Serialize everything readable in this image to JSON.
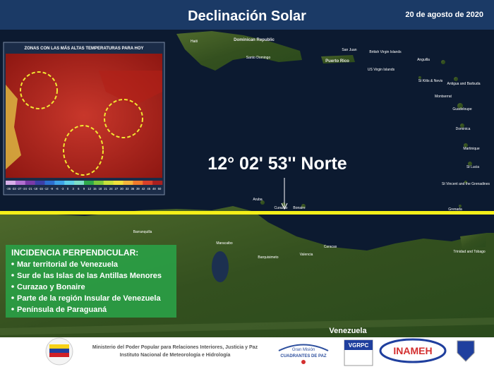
{
  "header": {
    "title": "Declinación Solar",
    "date": "20 de agosto de 2020"
  },
  "inset": {
    "title": "ZONAS CON LAS MÁS ALTAS TEMPERATURAS PARA HOY",
    "scale_labels": [
      "-36",
      "-33",
      "-27",
      "-24",
      "-21",
      "-18",
      "-15",
      "-12",
      "-9",
      "-6",
      "-3",
      "0",
      "3",
      "6",
      "9",
      "12",
      "15",
      "18",
      "21",
      "24",
      "27",
      "30",
      "33",
      "36",
      "39",
      "42",
      "45",
      "48",
      "50"
    ]
  },
  "map": {
    "latitude_label": "12° 02' 53'' Norte",
    "place_labels": [
      "Haiti",
      "Dominican Republic",
      "Santo Domingo",
      "San Juan",
      "Puerto Rico",
      "US Virgin Islands",
      "British Virgin Islands",
      "Anguilla",
      "St Kitts & Nevis",
      "Antigua and Barbuda",
      "Montserrat",
      "Guadeloupe",
      "Dominica",
      "Martinique",
      "St Lucia",
      "St Vincent and the Grenadines",
      "Grenada",
      "Aruba",
      "Curazao",
      "Bonaire",
      "Barranquilla",
      "Maracaibo",
      "Barquisimeto",
      "Valencia",
      "Caracas",
      "Trinidad and Tobago",
      "Venezuela"
    ]
  },
  "incidence": {
    "heading": "INCIDENCIA PERPENDICULAR:",
    "items": [
      "Mar territorial de Venezuela",
      "Sur de las Islas de las Antillas Menores",
      "Curazao y Bonaire",
      "Parte de la región Insular de Venezuela",
      "Península de Paraguaná"
    ]
  },
  "footer": {
    "ministry": [
      "Ministerio del Poder Popular para Relaciones Interiores, Justicia y Paz",
      "Instituto  Nacional de Meteorología e Hidrología"
    ],
    "logos": [
      "Gran Misión",
      "CUADRANTES DE PAZ",
      "VGRPC",
      "INAMEH"
    ]
  }
}
